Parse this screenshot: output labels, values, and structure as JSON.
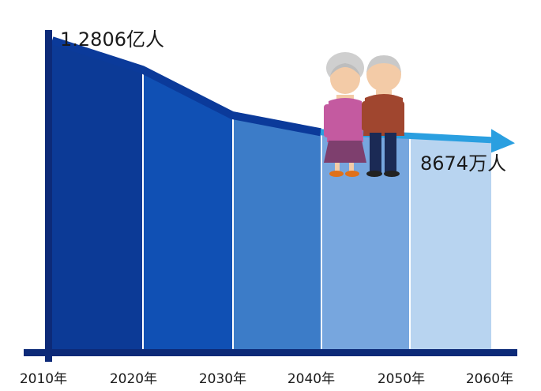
{
  "chart_data": {
    "type": "area",
    "title": "",
    "xlabel": "",
    "ylabel": "",
    "x": [
      "2010年",
      "2020年",
      "2030年",
      "2040年",
      "2050年",
      "2060年"
    ],
    "series": [
      {
        "values": [
          12806,
          11600,
          9700,
          9000,
          8850,
          8674
        ]
      }
    ],
    "ylim": [
      0,
      13500
    ],
    "grid": false,
    "legend": "none",
    "annotations": {
      "start": "1.2806亿人",
      "end": "8674万人"
    },
    "colors": {
      "axis": "#0d2a78",
      "line": "#0b3a9a",
      "arrow": "#2a9fe0",
      "segments": [
        "#0c3a96",
        "#1050b4",
        "#3c7cc8",
        "#77a6de",
        "#b8d4f0"
      ]
    }
  },
  "illustration": {
    "name": "elderly-couple"
  }
}
